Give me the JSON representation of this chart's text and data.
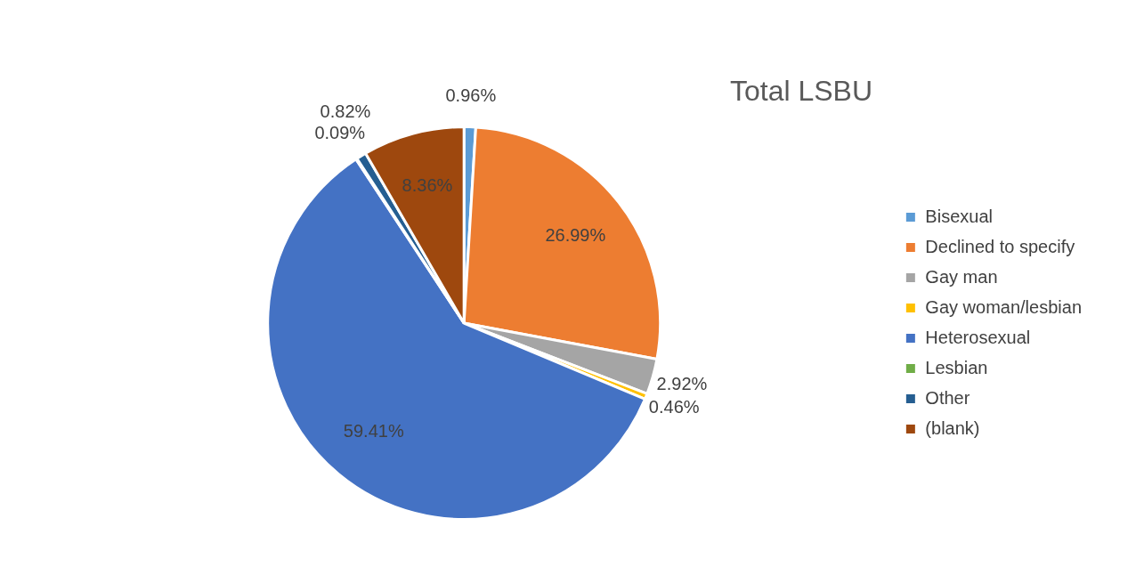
{
  "chart_data": {
    "type": "pie",
    "title": "Total LSBU",
    "categories": [
      "Bisexual",
      "Declined to specify",
      "Gay man",
      "Gay woman/lesbian",
      "Heterosexual",
      "Lesbian",
      "Other",
      "(blank)"
    ],
    "values": [
      0.96,
      26.99,
      2.92,
      0.46,
      59.41,
      0.09,
      0.82,
      8.36
    ],
    "colors": [
      "#5b9bd5",
      "#ed7d31",
      "#a5a5a5",
      "#ffc000",
      "#4472c4",
      "#70ad47",
      "#255e91",
      "#9e480e"
    ],
    "value_labels": [
      "0.96%",
      "26.99%",
      "2.92%",
      "0.46%",
      "59.41%",
      "0.09%",
      "0.82%",
      "8.36%"
    ],
    "legend": "right"
  }
}
